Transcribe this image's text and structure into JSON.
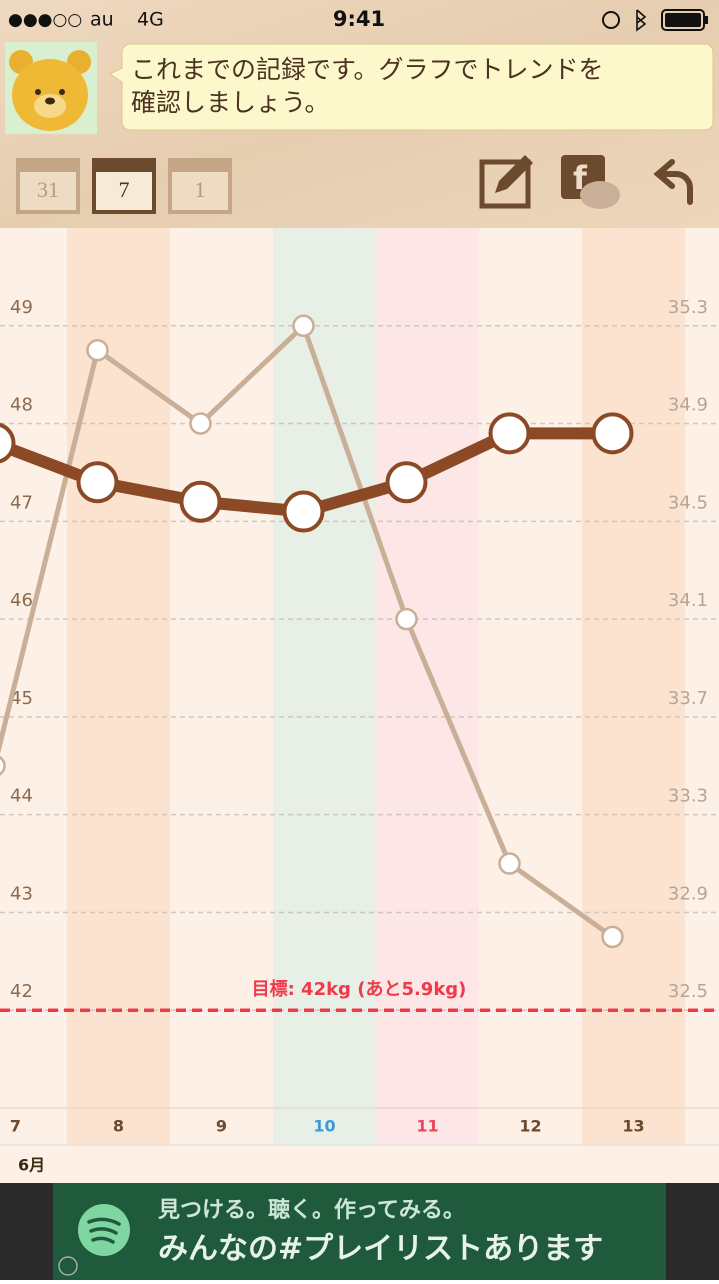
{
  "status_bar": {
    "signal": "●●●○○",
    "carrier": "au",
    "network": "4G",
    "time": "9:41"
  },
  "message": [
    "これまでの記録です。グラフでトレンドを",
    "確認しましょう。"
  ],
  "calendar_buttons": [
    "31",
    "7",
    "1"
  ],
  "chart_data": {
    "type": "line",
    "categories": [
      "7",
      "8",
      "9",
      "10",
      "11",
      "12",
      "13"
    ],
    "category_colors": [
      "#6b4a2e",
      "#6b4a2e",
      "#6b4a2e",
      "#3a9ad9",
      "#e5485a",
      "#6b4a2e",
      "#6b4a2e"
    ],
    "column_colors": [
      "#fdf1e7",
      "#fce3cf",
      "#fdf1e7",
      "#e8efe6",
      "#fde6e6",
      "#fdf1e7",
      "#fce3cf"
    ],
    "series": [
      {
        "color": "#8b4a25",
        "values": [
          47.8,
          47.4,
          47.2,
          47.1,
          47.4,
          47.9,
          47.9
        ]
      },
      {
        "color": "#c9ae98",
        "axis": "y2",
        "values": [
          33.5,
          35.2,
          34.9,
          35.3,
          34.1,
          33.1,
          32.8
        ]
      }
    ],
    "ylim": [
      41,
      50
    ],
    "yticks": [
      49,
      48,
      47,
      46,
      45,
      44,
      43,
      42
    ],
    "y2lim": [
      32.1,
      35.7
    ],
    "y2ticks": [
      35.3,
      34.9,
      34.5,
      34.1,
      33.7,
      33.3,
      32.9,
      32.5
    ],
    "grid": true,
    "goal": 42,
    "goal_label": "目標: 42kg (あと5.9kg)",
    "month": "6月"
  },
  "ad": {
    "line1": "見つける。聴く。作ってみる。",
    "line2": "みんなの#プレイリストあります"
  }
}
